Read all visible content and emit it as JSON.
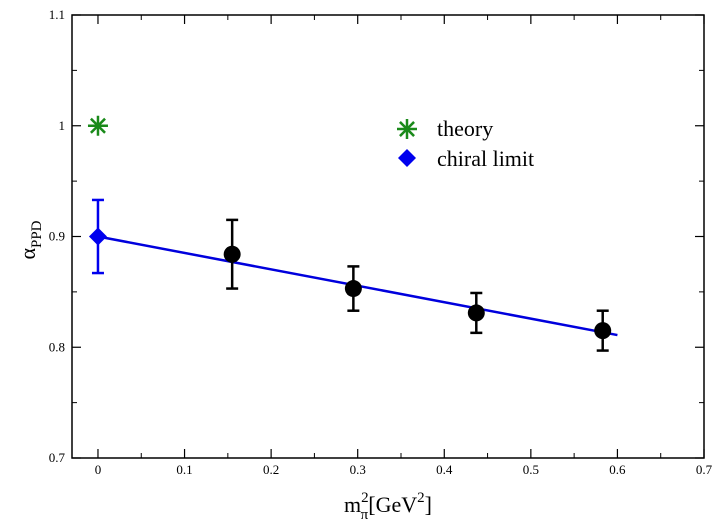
{
  "chart_data": {
    "type": "scatter",
    "xlabel": {
      "main": "m",
      "sup": "2",
      "sub": "π",
      "unit_open": "[GeV",
      "unit_sup": "2",
      "unit_close": "]"
    },
    "ylabel": {
      "main": "α",
      "sub": "PPD"
    },
    "xlim": [
      -0.03,
      0.7
    ],
    "ylim": [
      0.7,
      1.1
    ],
    "x_ticks": [
      0,
      0.1,
      0.2,
      0.3,
      0.4,
      0.5,
      0.6,
      0.7
    ],
    "x_tick_labels": [
      "0",
      "0.1",
      "0.2",
      "0.3",
      "0.4",
      "0.5",
      "0.6",
      "0.7"
    ],
    "y_ticks": [
      0.7,
      0.8,
      0.9,
      1.0,
      1.1
    ],
    "y_tick_labels": [
      "0.7",
      "0.8",
      "0.9",
      "1",
      "1.1"
    ],
    "grid": false,
    "legend_position": "upper-middle",
    "series": [
      {
        "kind": "data",
        "marker": "circle",
        "color": "#000000",
        "points": [
          {
            "x": 0.155,
            "y": 0.884,
            "err_low": 0.031,
            "err_high": 0.031
          },
          {
            "x": 0.295,
            "y": 0.853,
            "err_low": 0.02,
            "err_high": 0.02
          },
          {
            "x": 0.437,
            "y": 0.831,
            "err_low": 0.018,
            "err_high": 0.018
          },
          {
            "x": 0.583,
            "y": 0.815,
            "err_low": 0.018,
            "err_high": 0.018
          }
        ]
      },
      {
        "kind": "fit",
        "color": "#0000dd",
        "line": [
          [
            0,
            0.9
          ],
          [
            0.6,
            0.811
          ]
        ]
      },
      {
        "name": "theory",
        "marker": "asterisk",
        "color": "#1a8a1a",
        "points": [
          {
            "x": 0,
            "y": 1.0
          }
        ]
      },
      {
        "name": "chiral limit",
        "marker": "diamond",
        "color": "#0000ee",
        "points": [
          {
            "x": 0,
            "y": 0.9,
            "err_low": 0.033,
            "err_high": 0.033
          }
        ]
      }
    ]
  }
}
